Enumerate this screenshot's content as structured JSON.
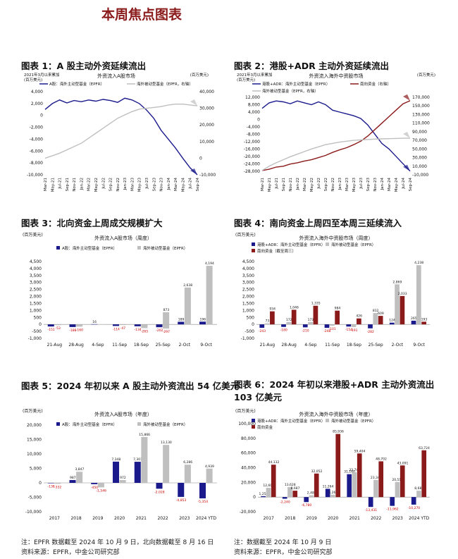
{
  "page_title": "本周焦点图表",
  "figures": [
    {
      "title": "图表 1：A 股主动外资延续流出"
    },
    {
      "title": "图表 2：港股+ADR 主动外资延续流出"
    },
    {
      "title": "图表 3：北向资金上周成交规模扩大"
    },
    {
      "title": "图表 4：南向资金上周四至本周三延续流入"
    },
    {
      "title": "图表 5：2024 年初以来 A 股主动外资流出 54 亿美元"
    },
    {
      "title": "图表 6：2024 年初以来港股+ADR 主动外资流出 103 亿美元"
    }
  ],
  "notes": {
    "line1": "注：EPFR 数据截至 2024 年 10 月 9 日，北向数据截至 8 月 16 日",
    "line2": "资料来源：EPFR，中金公司研究部",
    "line1b": "注：数据截至 2024 年 10 月 9 日",
    "line2b": "资料来源：EPFR，中金公司研究部"
  },
  "chart_data": [
    {
      "type": "line",
      "title": "外资流入A股市场",
      "unit_left": "2021年3月以来累加\n(百万美元)",
      "unit_right": "(百万美元)",
      "legend": [
        "A股：海外主动型基金（EPFR）",
        "海外被动型基金（EPFR，右轴）"
      ],
      "colors": [
        "#1a1a8c",
        "#bfbfbf"
      ],
      "x_ticks": [
        "Mar-21",
        "May-21",
        "Jul-21",
        "Sep-21",
        "Nov-21",
        "Jan-22",
        "Mar-22",
        "May-22",
        "Jul-22",
        "Sep-22",
        "Nov-22",
        "Jan-23",
        "Mar-23",
        "May-23",
        "Jul-23",
        "Sep-23",
        "Nov-23",
        "Jan-24",
        "Mar-24",
        "May-24",
        "Jul-24",
        "Sep-24"
      ],
      "ylim": [
        -10000,
        4000
      ],
      "y_ticks": [
        4000,
        2000,
        0,
        -2000,
        -4000,
        -6000,
        -8000,
        -10000
      ],
      "ylim_right": [
        -10000,
        40000
      ],
      "y_ticks_right": [
        40000,
        30000,
        20000,
        10000,
        0,
        -10000
      ],
      "series": [
        {
          "name": "A股：海外主动型基金（EPFR）",
          "axis": "left",
          "values": [
            1000,
            2000,
            2600,
            2100,
            2500,
            2300,
            2600,
            2400,
            2700,
            2500,
            2200,
            2900,
            2600,
            2000,
            900,
            -500,
            -2500,
            -4000,
            -5500,
            -7200,
            -8800,
            -10000
          ]
        },
        {
          "name": "海外被动型基金（EPFR，右轴）",
          "axis": "right",
          "values": [
            0,
            1500,
            3000,
            5000,
            7000,
            9000,
            12000,
            15000,
            18000,
            21000,
            24000,
            26000,
            28000,
            29500,
            30000,
            30500,
            31000,
            32000,
            32500,
            32500,
            32000,
            31500
          ]
        }
      ]
    },
    {
      "type": "line",
      "title": "外资流入海外中资股市场",
      "unit_left": "2021年3月以来累加\n(百万美元)",
      "unit_right": "(百万美元)",
      "legend": [
        "港股+ADR：海外主动型基金（EPFR）",
        "南向资金（右轴）",
        "海外被动型基金（EPFR，右轴）"
      ],
      "colors": [
        "#1a1a8c",
        "#8b1a1a",
        "#bfbfbf"
      ],
      "x_ticks": [
        "Mar-21",
        "May-21",
        "Jul-21",
        "Sep-21",
        "Nov-21",
        "Jan-22",
        "Mar-22",
        "May-22",
        "Jul-22",
        "Sep-22",
        "Nov-22",
        "Jan-23",
        "Mar-23",
        "May-23",
        "Jul-23",
        "Sep-23",
        "Nov-23",
        "Jan-24",
        "Mar-24",
        "May-24",
        "Jul-24",
        "Sep-24"
      ],
      "ylim": [
        -30000,
        12000
      ],
      "y_ticks": [
        12000,
        8000,
        4000,
        0,
        -4000,
        -8000,
        -12000,
        -16000,
        -20000,
        -24000,
        -28000
      ],
      "ylim_right": [
        -10000,
        170000
      ],
      "y_ticks_right": [
        170000,
        150000,
        130000,
        110000,
        90000,
        70000,
        50000,
        30000,
        10000,
        -10000
      ],
      "series": [
        {
          "name": "港股+ADR：海外主动型基金（EPFR）",
          "axis": "left",
          "values": [
            6000,
            9000,
            10000,
            9500,
            8500,
            10000,
            9000,
            8000,
            9500,
            8000,
            5000,
            4000,
            3000,
            2000,
            500,
            -3000,
            -8000,
            -13000,
            -16000,
            -20000,
            -24000,
            -28000
          ]
        },
        {
          "name": "南向资金（右轴）",
          "axis": "right",
          "values": [
            0,
            3000,
            8000,
            10000,
            15000,
            18000,
            22000,
            25000,
            30000,
            35000,
            42000,
            48000,
            53000,
            60000,
            68000,
            80000,
            95000,
            110000,
            125000,
            140000,
            155000,
            162000
          ]
        },
        {
          "name": "海外被动型基金（EPFR，右轴）",
          "axis": "right",
          "values": [
            0,
            10000,
            18000,
            25000,
            32000,
            38000,
            44000,
            50000,
            55000,
            60000,
            63000,
            66000,
            68000,
            70000,
            71000,
            72000,
            73000,
            73500,
            74000,
            74500,
            75000,
            75000
          ]
        }
      ]
    },
    {
      "type": "bar",
      "title": "外资流入A股市场（周度）",
      "unit": "(百万美元)",
      "legend": [
        "A股：海外主动型基金（EPFR）",
        "海外被动型基金（EPFR）"
      ],
      "colors": [
        "#1a1a8c",
        "#bfbfbf"
      ],
      "categories": [
        "21-Aug",
        "28-Aug",
        "4-Sep",
        "11-Sep",
        "18-Sep",
        "25-Sep",
        "2-Oct",
        "9-Oct"
      ],
      "ylim": [
        -1000,
        4500
      ],
      "y_ticks": [
        4500,
        4000,
        3500,
        3000,
        2500,
        2000,
        1500,
        1000,
        500,
        0,
        -500,
        -1000
      ],
      "series": [
        {
          "name": "A股：海外主动型基金（EPFR）",
          "values": [
            -151,
            -188,
            16,
            -114,
            -134,
            -202,
            189,
            196
          ]
        },
        {
          "name": "海外被动型基金（EPFR）",
          "values": [
            -53,
            -160,
            0,
            -47,
            -265,
            -297,
            2638,
            4194
          ]
        }
      ],
      "labels": [
        [
          "-151",
          "-188",
          "16",
          "-114",
          "-134",
          "-202",
          "189",
          "196"
        ],
        [
          "-53",
          "-160",
          "",
          "-47",
          "-265",
          "-297",
          "2,638",
          "4,194"
        ]
      ],
      "extra_labels": [
        {
          "category": 5,
          "value": 873,
          "text": "873"
        }
      ]
    },
    {
      "type": "bar",
      "title": "外资流入海外中资股市场（周度）",
      "unit": "(百万美元)",
      "legend": [
        "港股+ADR：海外主动型基金（EPFR）",
        "海外被动型基金（EPFR）",
        "南向资金（截至周三）"
      ],
      "colors": [
        "#1a1a8c",
        "#bfbfbf",
        "#8b1a1a"
      ],
      "categories": [
        "21-Aug",
        "28-Aug",
        "4-Sep",
        "11-Sep",
        "18-Sep",
        "25-Sep",
        "2-Oct",
        "9-Oct"
      ],
      "ylim": [
        -1000,
        4500
      ],
      "y_ticks": [
        4500,
        4000,
        3500,
        3000,
        2500,
        2000,
        1500,
        1000,
        500,
        0,
        -500,
        -1000
      ],
      "series": [
        {
          "name": "港股+ADR：海外主动型基金（EPFR）",
          "values": [
            -243,
            -180,
            -210,
            -248,
            -154,
            -282,
            124,
            265
          ]
        },
        {
          "name": "海外被动型基金（EPFR）",
          "values": [
            73,
            172,
            173,
            -101,
            -191,
            812,
            2869,
            4238
          ]
        },
        {
          "name": "南向资金（截至周三）",
          "values": [
            934,
            1046,
            1335,
            984,
            426,
            609,
            2033,
            193
          ]
        }
      ]
    },
    {
      "type": "bar",
      "title": "外资流入A股市场（年度）",
      "unit": "(百万美元)",
      "legend": [
        "A股：海外主动型基金（EPFR）",
        "海外被动型基金（EPFR）"
      ],
      "colors": [
        "#1a1a8c",
        "#bfbfbf"
      ],
      "categories": [
        "2017",
        "2018",
        "2019",
        "2020",
        "2021",
        "2022",
        "2023",
        "2024 YTD"
      ],
      "ylim": [
        -10000,
        20000
      ],
      "y_ticks": [
        20000,
        15000,
        10000,
        5000,
        0,
        -5000,
        -10000
      ],
      "series": [
        {
          "name": "A股：海外主动型基金（EPFR）",
          "values": [
            -138,
            987,
            -450,
            7348,
            7301,
            -2028,
            -4853,
            -5354
          ]
        },
        {
          "name": "海外被动型基金（EPFR）",
          "values": [
            -332,
            3847,
            -1546,
            972,
            15866,
            13130,
            6286,
            4939
          ]
        }
      ]
    },
    {
      "type": "bar",
      "title": "外资流入海外中资股市场（年度）",
      "unit": "(百万美元)",
      "legend": [
        "港股+ADR：海外主动型基金（EPFR）",
        "海外被动型基金（EPFR）",
        "南向资金"
      ],
      "colors": [
        "#1a1a8c",
        "#bfbfbf",
        "#8b1a1a"
      ],
      "categories": [
        "2017",
        "2018",
        "2019",
        "2020",
        "2021",
        "2022",
        "2023",
        "2024 YTD"
      ],
      "ylim": [
        -20000,
        100000
      ],
      "y_ticks": [
        100000,
        80000,
        60000,
        40000,
        20000,
        0,
        -20000
      ],
      "series": [
        {
          "name": "港股+ADR：海外主动型基金（EPFR）",
          "values": [
            1253,
            -2240,
            -6780,
            11264,
            31160,
            -13431,
            -11962,
            -10270
          ]
        },
        {
          "name": "海外被动型基金（EPFR）",
          "values": [
            12609,
            13628,
            2488,
            3262,
            33744,
            23344,
            20510,
            8688
          ]
        },
        {
          "name": "南向资金",
          "values": [
            44132,
            8687,
            32052,
            85936,
            59404,
            48702,
            43091,
            63724
          ]
        }
      ]
    }
  ]
}
